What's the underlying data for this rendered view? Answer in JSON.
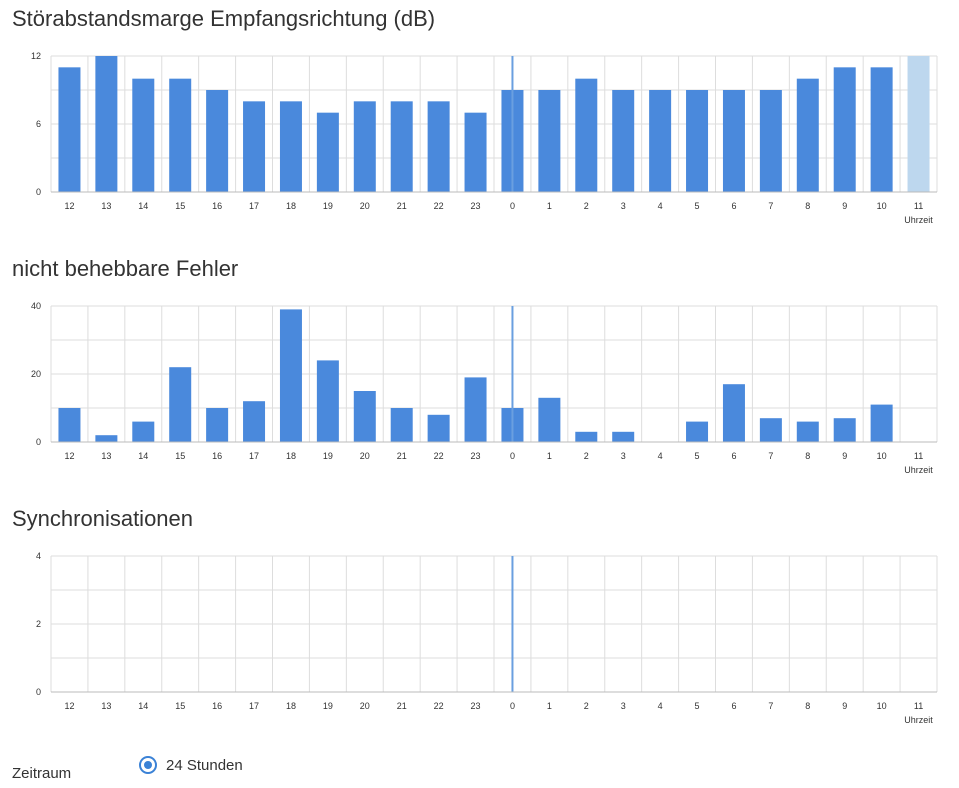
{
  "colors": {
    "bar": "#4a89dc",
    "bar_current": "#bdd7ee",
    "grid": "#dddddd",
    "axis": "#bbbbbb",
    "now_line": "#6a9fe0",
    "radio": "#3b82d6"
  },
  "x_unit_label": "Uhrzeit",
  "chart_data": [
    {
      "type": "bar",
      "title": "Störabstandsmarge Empfangsrichtung (dB)",
      "categories": [
        "12",
        "13",
        "14",
        "15",
        "16",
        "17",
        "18",
        "19",
        "20",
        "21",
        "22",
        "23",
        "0",
        "1",
        "2",
        "3",
        "4",
        "5",
        "6",
        "7",
        "8",
        "9",
        "10",
        "11"
      ],
      "values": [
        11,
        12,
        10,
        10,
        9,
        8,
        8,
        7,
        8,
        8,
        8,
        7,
        9,
        9,
        10,
        9,
        9,
        9,
        9,
        9,
        10,
        11,
        11,
        12
      ],
      "current_index": 23,
      "now_marker_category": "0",
      "ylim": [
        0,
        12
      ],
      "yticks": [
        0,
        6,
        12
      ],
      "xlabel": "Uhrzeit",
      "ylabel": ""
    },
    {
      "type": "bar",
      "title": "nicht behebbare Fehler",
      "categories": [
        "12",
        "13",
        "14",
        "15",
        "16",
        "17",
        "18",
        "19",
        "20",
        "21",
        "22",
        "23",
        "0",
        "1",
        "2",
        "3",
        "4",
        "5",
        "6",
        "7",
        "8",
        "9",
        "10",
        "11"
      ],
      "values": [
        10,
        2,
        6,
        22,
        10,
        12,
        39,
        24,
        15,
        10,
        8,
        19,
        10,
        13,
        3,
        3,
        0,
        6,
        17,
        7,
        6,
        7,
        11,
        0
      ],
      "current_index": null,
      "now_marker_category": "0",
      "ylim": [
        0,
        40
      ],
      "yticks": [
        0,
        20,
        40
      ],
      "xlabel": "Uhrzeit",
      "ylabel": ""
    },
    {
      "type": "bar",
      "title": "Synchronisationen",
      "categories": [
        "12",
        "13",
        "14",
        "15",
        "16",
        "17",
        "18",
        "19",
        "20",
        "21",
        "22",
        "23",
        "0",
        "1",
        "2",
        "3",
        "4",
        "5",
        "6",
        "7",
        "8",
        "9",
        "10",
        "11"
      ],
      "values": [
        0,
        0,
        0,
        0,
        0,
        0,
        0,
        0,
        0,
        0,
        0,
        0,
        0,
        0,
        0,
        0,
        0,
        0,
        0,
        0,
        0,
        0,
        0,
        0
      ],
      "current_index": null,
      "now_marker_category": "0",
      "ylim": [
        0,
        4
      ],
      "yticks": [
        0,
        2,
        4
      ],
      "xlabel": "Uhrzeit",
      "ylabel": ""
    }
  ],
  "zeitraum": {
    "label": "Zeitraum",
    "option_label": "24 Stunden"
  }
}
